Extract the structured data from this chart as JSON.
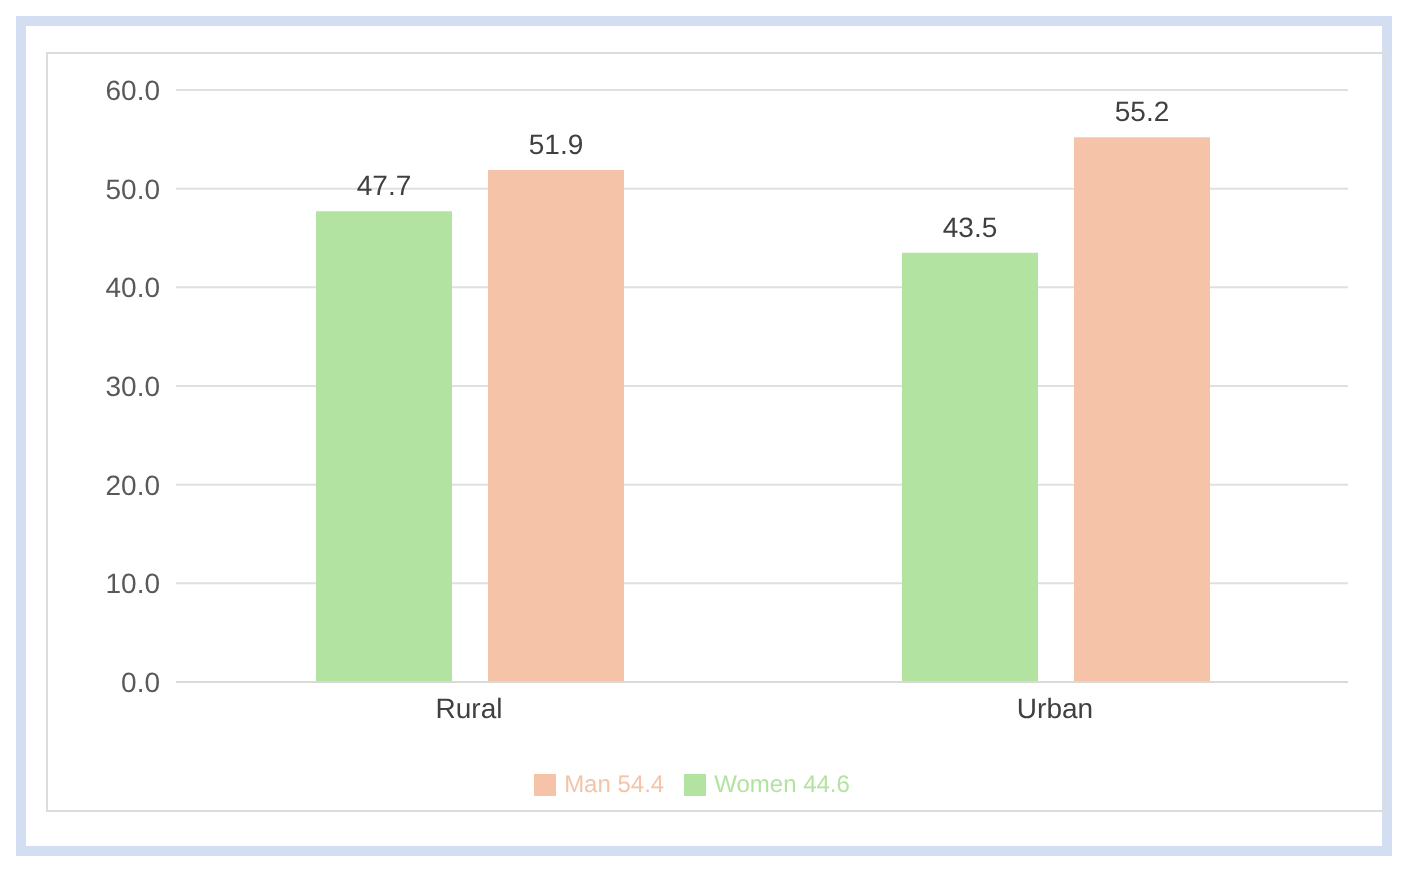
{
  "chart_data": {
    "type": "bar",
    "categories": [
      "Rural",
      "Urban"
    ],
    "series": [
      {
        "name": "Women 44.6",
        "color": "#b3e3a0",
        "values": [
          47.7,
          43.5
        ]
      },
      {
        "name": "Man 54.4",
        "color": "#f4c3a8",
        "values": [
          51.9,
          55.2
        ]
      }
    ],
    "ylim": [
      0,
      60
    ],
    "yticks": [
      {
        "value": 0,
        "label": "0.0"
      },
      {
        "value": 10,
        "label": "10.0"
      },
      {
        "value": 20,
        "label": "20.0"
      },
      {
        "value": 30,
        "label": "30.0"
      },
      {
        "value": 40,
        "label": "40.0"
      },
      {
        "value": 50,
        "label": "50.0"
      },
      {
        "value": 60,
        "label": "60.0"
      }
    ],
    "grid": "y",
    "legend": "bottom",
    "data_labels": true
  }
}
